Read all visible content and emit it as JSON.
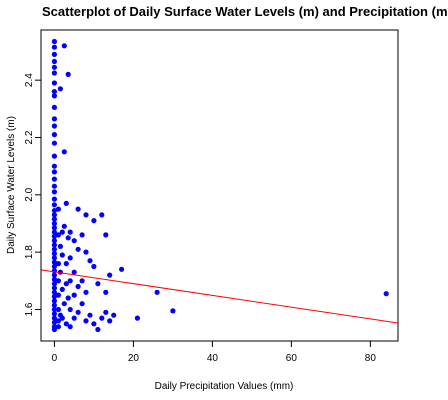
{
  "chart_data": {
    "type": "scatter",
    "title": "Scatterplot of Daily Surface Water Levels (m) and Precipitation (mm",
    "xlabel": "Daily Precipitation Values (mm)",
    "ylabel": "Daily Surface Water Levels (m)",
    "xlim": [
      -3.4,
      87
    ],
    "ylim": [
      1.49,
      2.575
    ],
    "x_ticks": [
      0,
      20,
      40,
      60,
      80
    ],
    "y_ticks": [
      1.6,
      1.8,
      2.0,
      2.2,
      2.4
    ],
    "x_tick_labels": [
      "0",
      "20",
      "40",
      "60",
      "80"
    ],
    "y_tick_labels": [
      "1.6",
      "1.8",
      "2.0",
      "2.2",
      "2.4"
    ],
    "grid": false,
    "point_color": "#0000ff",
    "regression_line": {
      "color": "#ff0000",
      "intercept": 1.731,
      "slope": -0.00205
    },
    "points": [
      [
        0,
        2.535
      ],
      [
        0,
        2.515
      ],
      [
        0,
        2.49
      ],
      [
        0,
        2.465
      ],
      [
        0,
        2.445
      ],
      [
        0,
        2.425
      ],
      [
        0,
        2.39
      ],
      [
        0,
        2.36
      ],
      [
        0,
        2.345
      ],
      [
        0,
        2.305
      ],
      [
        0,
        2.265
      ],
      [
        0,
        2.24
      ],
      [
        0,
        2.21
      ],
      [
        0,
        2.18
      ],
      [
        0,
        2.135
      ],
      [
        0,
        2.1
      ],
      [
        0,
        2.08
      ],
      [
        0,
        2.055
      ],
      [
        0,
        2.03
      ],
      [
        0,
        2.01
      ],
      [
        0,
        1.985
      ],
      [
        0,
        1.965
      ],
      [
        0,
        1.945
      ],
      [
        0,
        1.93
      ],
      [
        0,
        1.915
      ],
      [
        0,
        1.9
      ],
      [
        0,
        1.885
      ],
      [
        0,
        1.87
      ],
      [
        0,
        1.855
      ],
      [
        0,
        1.84
      ],
      [
        0,
        1.825
      ],
      [
        0,
        1.81
      ],
      [
        0,
        1.795
      ],
      [
        0,
        1.78
      ],
      [
        0,
        1.765
      ],
      [
        0,
        1.75
      ],
      [
        0,
        1.735
      ],
      [
        0,
        1.72
      ],
      [
        0,
        1.705
      ],
      [
        0,
        1.69
      ],
      [
        0,
        1.675
      ],
      [
        0,
        1.66
      ],
      [
        0,
        1.645
      ],
      [
        0,
        1.63
      ],
      [
        0,
        1.615
      ],
      [
        0,
        1.6
      ],
      [
        0,
        1.585
      ],
      [
        0,
        1.57
      ],
      [
        0,
        1.555
      ],
      [
        0,
        1.54
      ],
      [
        0,
        1.53
      ],
      [
        1,
        1.95
      ],
      [
        1,
        1.86
      ],
      [
        1,
        1.76
      ],
      [
        1,
        1.7
      ],
      [
        1,
        1.65
      ],
      [
        1,
        1.6
      ],
      [
        1,
        1.56
      ],
      [
        1,
        1.54
      ],
      [
        1.5,
        2.37
      ],
      [
        1.5,
        1.82
      ],
      [
        1.5,
        1.73
      ],
      [
        1.5,
        1.58
      ],
      [
        2,
        1.87
      ],
      [
        2,
        1.79
      ],
      [
        2,
        1.67
      ],
      [
        2,
        1.57
      ],
      [
        2.5,
        2.52
      ],
      [
        2.5,
        2.15
      ],
      [
        2.5,
        1.89
      ],
      [
        2.5,
        1.62
      ],
      [
        3,
        1.97
      ],
      [
        3,
        1.76
      ],
      [
        3,
        1.69
      ],
      [
        3,
        1.55
      ],
      [
        3.5,
        2.42
      ],
      [
        3.5,
        1.85
      ],
      [
        3.5,
        1.64
      ],
      [
        4,
        1.87
      ],
      [
        4,
        1.78
      ],
      [
        4,
        1.7
      ],
      [
        4,
        1.6
      ],
      [
        4,
        1.54
      ],
      [
        5,
        1.84
      ],
      [
        5,
        1.73
      ],
      [
        5,
        1.65
      ],
      [
        5,
        1.57
      ],
      [
        6,
        1.95
      ],
      [
        6,
        1.81
      ],
      [
        6,
        1.68
      ],
      [
        6,
        1.59
      ],
      [
        7,
        1.86
      ],
      [
        7,
        1.7
      ],
      [
        7,
        1.62
      ],
      [
        8,
        1.93
      ],
      [
        8,
        1.8
      ],
      [
        8,
        1.66
      ],
      [
        8,
        1.56
      ],
      [
        9,
        1.77
      ],
      [
        9,
        1.58
      ],
      [
        10,
        1.91
      ],
      [
        10,
        1.75
      ],
      [
        10,
        1.55
      ],
      [
        11,
        1.69
      ],
      [
        11,
        1.53
      ],
      [
        12,
        1.93
      ],
      [
        12,
        1.57
      ],
      [
        13,
        1.86
      ],
      [
        13,
        1.66
      ],
      [
        13,
        1.59
      ],
      [
        14,
        1.72
      ],
      [
        14,
        1.56
      ],
      [
        15,
        1.58
      ],
      [
        17,
        1.74
      ],
      [
        21,
        1.57
      ],
      [
        26,
        1.66
      ],
      [
        30,
        1.595
      ],
      [
        84,
        1.655
      ]
    ]
  }
}
